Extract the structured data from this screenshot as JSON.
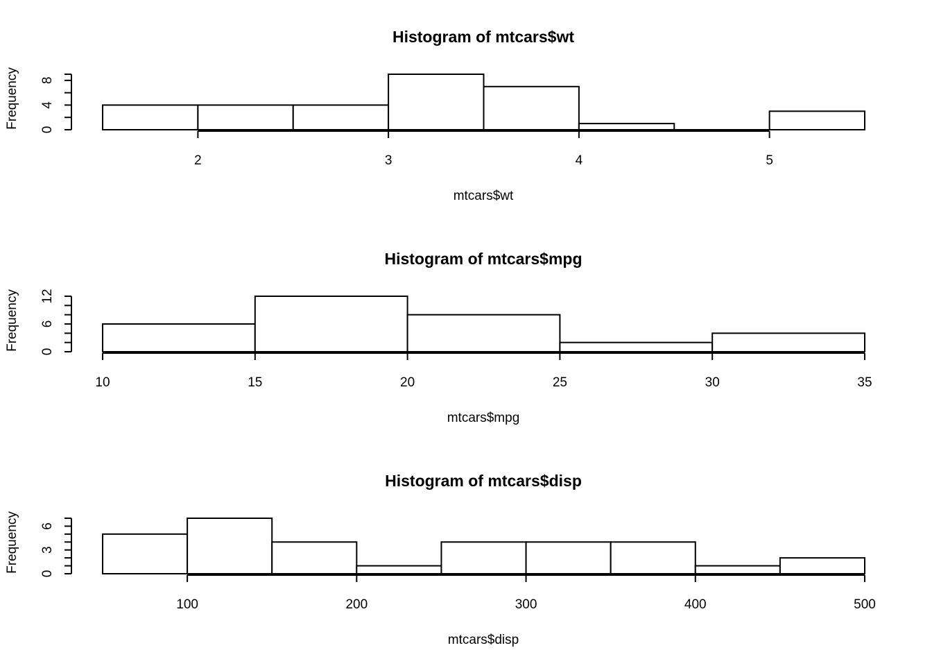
{
  "chart_data": [
    {
      "type": "bar",
      "title": "Histogram of mtcars$wt",
      "xlabel": "mtcars$wt",
      "ylabel": "Frequency",
      "breaks": [
        1.5,
        2,
        2.5,
        3,
        3.5,
        4,
        4.5,
        5,
        5.5
      ],
      "values": [
        4,
        4,
        4,
        9,
        7,
        1,
        0,
        3
      ],
      "xticks": [
        2,
        3,
        4,
        5
      ],
      "xtick_labels": [
        "2",
        "3",
        "4",
        "5"
      ],
      "xaxis_range": [
        2,
        5
      ],
      "yticks": [
        0,
        4,
        8
      ],
      "ytick_labels": [
        "0",
        "4",
        "8"
      ],
      "yminor_ticks": [
        2,
        6
      ],
      "ylim": [
        0,
        9
      ],
      "grid": false
    },
    {
      "type": "bar",
      "title": "Histogram of mtcars$mpg",
      "xlabel": "mtcars$mpg",
      "ylabel": "Frequency",
      "breaks": [
        10,
        15,
        20,
        25,
        30,
        35
      ],
      "values": [
        6,
        12,
        8,
        2,
        4
      ],
      "xticks": [
        10,
        15,
        20,
        25,
        30,
        35
      ],
      "xtick_labels": [
        "10",
        "15",
        "20",
        "25",
        "30",
        "35"
      ],
      "xaxis_range": [
        10,
        35
      ],
      "yticks": [
        0,
        6,
        12
      ],
      "ytick_labels": [
        "0",
        "6",
        "12"
      ],
      "yminor_ticks": [
        2,
        4,
        8,
        10
      ],
      "ylim": [
        0,
        12
      ],
      "grid": false
    },
    {
      "type": "bar",
      "title": "Histogram of mtcars$disp",
      "xlabel": "mtcars$disp",
      "ylabel": "Frequency",
      "breaks": [
        50,
        100,
        150,
        200,
        250,
        300,
        350,
        400,
        450,
        500
      ],
      "values": [
        5,
        7,
        4,
        1,
        4,
        4,
        4,
        1,
        2
      ],
      "xticks": [
        100,
        200,
        300,
        400,
        500
      ],
      "xtick_labels": [
        "100",
        "200",
        "300",
        "400",
        "500"
      ],
      "xaxis_range": [
        100,
        500
      ],
      "yticks": [
        0,
        3,
        6
      ],
      "ytick_labels": [
        "0",
        "3",
        "6"
      ],
      "yminor_ticks": [
        1,
        2,
        4,
        5,
        7
      ],
      "ylim": [
        0,
        7
      ],
      "grid": false
    }
  ]
}
